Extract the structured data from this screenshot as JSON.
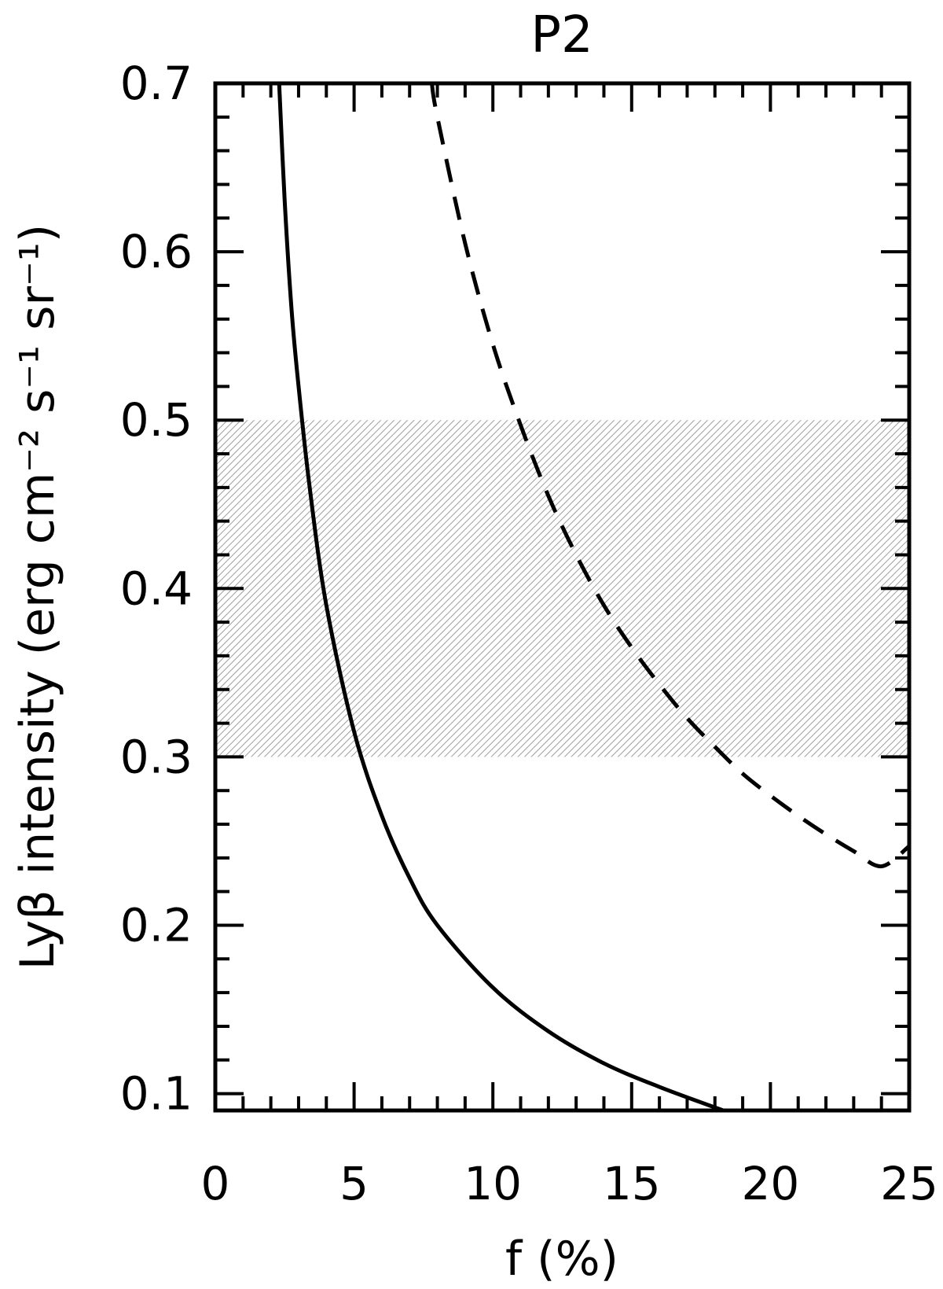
{
  "chart_data": {
    "type": "line",
    "title": "P2",
    "xlabel": "f (%)",
    "ylabel": "Lyβ intensity (erg cm⁻² s⁻¹ sr⁻¹)",
    "xlim": [
      0,
      25
    ],
    "ylim": [
      0.09,
      0.7
    ],
    "xticks": [
      0,
      5,
      10,
      15,
      20,
      25
    ],
    "xtick_labels": [
      "0",
      "5",
      "10",
      "15",
      "20",
      "25"
    ],
    "yticks": [
      0.1,
      0.2,
      0.3,
      0.4,
      0.5,
      0.6,
      0.7
    ],
    "ytick_labels": [
      "0.1",
      "0.2",
      "0.3",
      "0.4",
      "0.5",
      "0.6",
      "0.7"
    ],
    "grid": false,
    "legend": null,
    "shaded_band": {
      "y_range": [
        0.3,
        0.5
      ],
      "pattern": "diagonal-hatch",
      "color": "#bdbdbd"
    },
    "series": [
      {
        "style": "solid",
        "color": "#000000",
        "x": [
          2.3,
          2.5,
          2.75,
          3.0,
          3.4,
          4.0,
          5.0,
          6.0,
          7.0,
          8.0,
          10.0,
          12.0,
          14.0,
          16.0,
          18.3
        ],
        "y": [
          0.7,
          0.63,
          0.565,
          0.52,
          0.46,
          0.39,
          0.315,
          0.265,
          0.228,
          0.2,
          0.163,
          0.137,
          0.118,
          0.104,
          0.09
        ]
      },
      {
        "style": "dashed",
        "color": "#000000",
        "x": [
          7.8,
          8.0,
          9.0,
          10.0,
          11.0,
          12.0,
          13.0,
          14.0,
          15.0,
          16.0,
          17.0,
          18.0,
          19.0,
          20.0,
          21.0,
          22.0,
          23.0,
          24.0,
          25.0
        ],
        "y": [
          0.7,
          0.68,
          0.605,
          0.545,
          0.497,
          0.455,
          0.42,
          0.39,
          0.365,
          0.343,
          0.323,
          0.306,
          0.29,
          0.277,
          0.265,
          0.254,
          0.244,
          0.235,
          0.247
        ]
      }
    ]
  }
}
